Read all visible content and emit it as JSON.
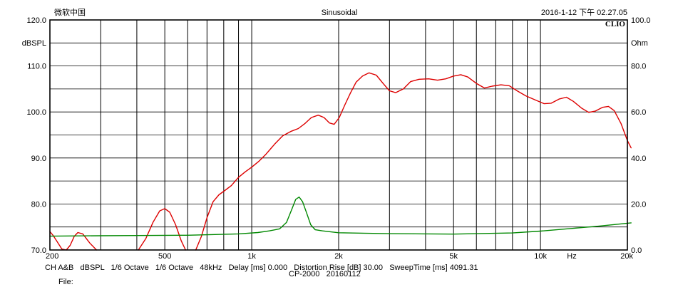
{
  "header": {
    "left": "微软中国",
    "center": "Sinusoidal",
    "right": "2016-1-12 下午 02.27.05",
    "brand": "CLIO"
  },
  "footer": {
    "line1": "CH A&B   dBSPL   1/6 Octave   1/6 Octave   48kHz   Delay [ms] 0.000   Distortion Rise [dB] 30.00   SweepTime [ms] 4091.31",
    "line2": "CP-2000   20160112",
    "file_label": "File:"
  },
  "chart_data": {
    "type": "line",
    "title": "Sinusoidal",
    "xscale": "log",
    "xlim": [
      200,
      20000
    ],
    "x_ticks": [
      {
        "v": 200,
        "label": "200"
      },
      {
        "v": 500,
        "label": "500"
      },
      {
        "v": 1000,
        "label": "1k"
      },
      {
        "v": 2000,
        "label": "2k"
      },
      {
        "v": 5000,
        "label": "5k"
      },
      {
        "v": 10000,
        "label": "10k"
      },
      {
        "v": 20000,
        "label": "20k"
      }
    ],
    "x_unit": "Hz",
    "vgrid": [
      200,
      300,
      400,
      500,
      600,
      700,
      800,
      900,
      1000,
      2000,
      3000,
      4000,
      5000,
      6000,
      7000,
      8000,
      9000,
      10000,
      20000
    ],
    "y_left": {
      "unit": "dBSPL",
      "lim": [
        70,
        120
      ],
      "ticks": [
        {
          "v": 120,
          "label": "120.0"
        },
        {
          "v": 110,
          "label": "110.0"
        },
        {
          "v": 100,
          "label": "100.0"
        },
        {
          "v": 90,
          "label": "90.0"
        },
        {
          "v": 80,
          "label": "80.0"
        },
        {
          "v": 70,
          "label": "70.0"
        }
      ]
    },
    "y_right": {
      "unit": "Ohm",
      "lim": [
        0,
        100
      ],
      "ticks": [
        {
          "v": 100,
          "label": "100.0"
        },
        {
          "v": 80,
          "label": "80.0"
        },
        {
          "v": 60,
          "label": "60.0"
        },
        {
          "v": 40,
          "label": "40.0"
        },
        {
          "v": 20,
          "label": "20.0"
        },
        {
          "v": 0,
          "label": "0.0"
        }
      ]
    },
    "hgrid": [
      120,
      115,
      110,
      105,
      100,
      95,
      90,
      85,
      80,
      75,
      70
    ],
    "series": [
      {
        "color": "#dd0000",
        "axis": "left",
        "segments": [
          [
            [
              200,
              74
            ],
            [
              205,
              73.2
            ],
            [
              212,
              71.8
            ],
            [
              220,
              70.2
            ],
            [
              228,
              70
            ],
            [
              235,
              71
            ],
            [
              243,
              73
            ],
            [
              250,
              73.8
            ],
            [
              260,
              73.5
            ],
            [
              275,
              71.5
            ],
            [
              290,
              70
            ]
          ],
          [
            [
              405,
              70
            ],
            [
              430,
              72.5
            ],
            [
              455,
              76
            ],
            [
              480,
              78.5
            ],
            [
              500,
              79
            ],
            [
              520,
              78.2
            ],
            [
              545,
              75.5
            ],
            [
              570,
              72
            ],
            [
              590,
              70
            ]
          ],
          [
            [
              640,
              70
            ],
            [
              670,
              73
            ],
            [
              700,
              77
            ],
            [
              735,
              80.5
            ],
            [
              770,
              82
            ],
            [
              810,
              83
            ],
            [
              850,
              84
            ],
            [
              900,
              85.8
            ],
            [
              950,
              87
            ],
            [
              1000,
              88
            ],
            [
              1060,
              89.3
            ],
            [
              1120,
              90.8
            ],
            [
              1200,
              93
            ],
            [
              1280,
              94.8
            ],
            [
              1370,
              95.8
            ],
            [
              1450,
              96.4
            ],
            [
              1530,
              97.5
            ],
            [
              1610,
              98.8
            ],
            [
              1700,
              99.3
            ],
            [
              1780,
              98.8
            ],
            [
              1860,
              97.6
            ],
            [
              1930,
              97.3
            ],
            [
              2010,
              98.8
            ],
            [
              2100,
              101.5
            ],
            [
              2200,
              104.2
            ],
            [
              2300,
              106.5
            ],
            [
              2420,
              107.8
            ],
            [
              2550,
              108.5
            ],
            [
              2700,
              108
            ],
            [
              2850,
              106.2
            ],
            [
              3000,
              104.6
            ],
            [
              3150,
              104.2
            ],
            [
              3350,
              105
            ],
            [
              3550,
              106.6
            ],
            [
              3800,
              107.1
            ],
            [
              4100,
              107.2
            ],
            [
              4400,
              106.9
            ],
            [
              4700,
              107.2
            ],
            [
              5000,
              107.8
            ],
            [
              5300,
              108.1
            ],
            [
              5600,
              107.6
            ],
            [
              6000,
              106.2
            ],
            [
              6400,
              105.2
            ],
            [
              6800,
              105.6
            ],
            [
              7300,
              105.9
            ],
            [
              7800,
              105.7
            ],
            [
              8300,
              104.6
            ],
            [
              8900,
              103.5
            ],
            [
              9600,
              102.6
            ],
            [
              10300,
              101.8
            ],
            [
              10900,
              101.9
            ],
            [
              11600,
              102.8
            ],
            [
              12300,
              103.2
            ],
            [
              13000,
              102.3
            ],
            [
              13900,
              100.8
            ],
            [
              14700,
              99.9
            ],
            [
              15500,
              100.2
            ],
            [
              16400,
              101
            ],
            [
              17200,
              101.2
            ],
            [
              18000,
              100.3
            ],
            [
              19000,
              97.5
            ],
            [
              20000,
              93.8
            ],
            [
              20600,
              92.2
            ]
          ]
        ]
      },
      {
        "color": "#008800",
        "axis": "right",
        "segments": [
          [
            [
              200,
              6
            ],
            [
              300,
              6.2
            ],
            [
              400,
              6.3
            ],
            [
              600,
              6.4
            ],
            [
              900,
              7.0
            ],
            [
              1050,
              7.6
            ],
            [
              1150,
              8.3
            ],
            [
              1250,
              9.2
            ],
            [
              1320,
              12
            ],
            [
              1380,
              18
            ],
            [
              1420,
              22
            ],
            [
              1460,
              23
            ],
            [
              1500,
              21
            ],
            [
              1550,
              16
            ],
            [
              1600,
              11
            ],
            [
              1660,
              8.8
            ],
            [
              1760,
              8.3
            ],
            [
              2000,
              7.5
            ],
            [
              3000,
              7.1
            ],
            [
              5000,
              6.9
            ],
            [
              8000,
              7.4
            ],
            [
              10000,
              8.2
            ],
            [
              13000,
              9.4
            ],
            [
              16000,
              10.4
            ],
            [
              20600,
              11.8
            ]
          ]
        ]
      }
    ]
  }
}
